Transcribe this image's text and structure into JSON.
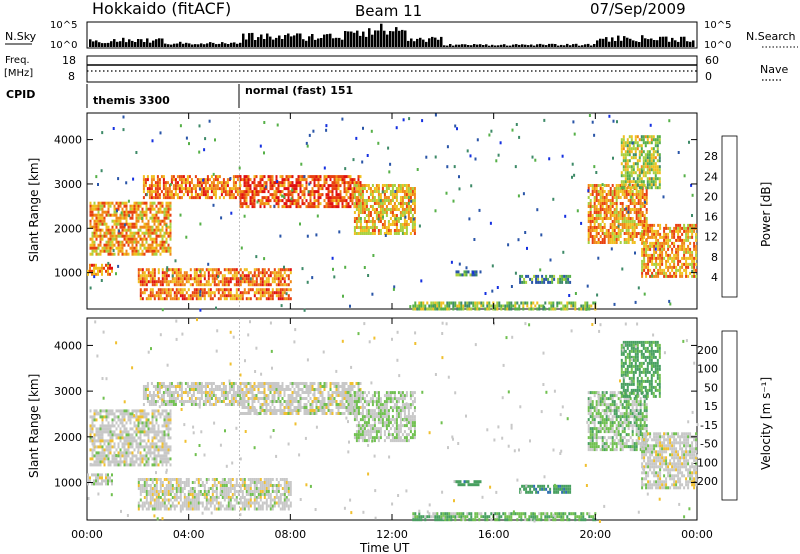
{
  "header": {
    "station": "Hokkaido (fitACF)",
    "beam": "Beam 11",
    "date": "07/Sep/2009"
  },
  "top_panels": {
    "nsky_label": "N.Sky",
    "nsky_ticks": [
      "10^5",
      "10^0"
    ],
    "nsearch_label": "N.Search",
    "nsearch_ticks": [
      "10^5",
      "10^0"
    ],
    "freq_label_1": "Freq.",
    "freq_label_2": "[MHz]",
    "freq_ticks": [
      "18",
      "8"
    ],
    "nave_label": "Nave",
    "nave_ticks": [
      "60",
      "0"
    ],
    "cpid_label": "CPID",
    "cpid_segments": [
      {
        "label": "themis 3300",
        "start_hour": 0,
        "end_hour": 6
      },
      {
        "label": "normal (fast) 151",
        "start_hour": 6,
        "end_hour": 24
      }
    ]
  },
  "chart_data": [
    {
      "type": "heatmap",
      "title": "",
      "xlabel": "Time UT",
      "ylabel": "Slant Range [km]",
      "x_ticks": [
        "00:00",
        "04:00",
        "08:00",
        "12:00",
        "16:00",
        "20:00",
        "00:00"
      ],
      "x_tick_hours": [
        0,
        4,
        8,
        12,
        16,
        20,
        24
      ],
      "xlim": [
        0,
        24
      ],
      "ylim": [
        180,
        4600
      ],
      "y_ticks": [
        1000,
        2000,
        3000,
        4000
      ],
      "colorbar": {
        "label": "Power [dB]",
        "ticks": [
          "4",
          "8",
          "12",
          "16",
          "20",
          "24",
          "28"
        ],
        "tick_values": [
          4,
          8,
          12,
          16,
          20,
          24,
          28
        ],
        "range": [
          0,
          32
        ],
        "colors": [
          "#1530e0",
          "#2a55a8",
          "#3e8a68",
          "#56b048",
          "#a8d040",
          "#f0c020",
          "#f08818",
          "#e84010",
          "#e01010"
        ]
      },
      "regions": [
        {
          "name": "morning-arc",
          "t0": 0.1,
          "t1": 3.3,
          "r0": 1400,
          "r1": 2600,
          "level": 22
        },
        {
          "name": "morning-upper",
          "t0": 2.2,
          "t1": 6.0,
          "r0": 2700,
          "r1": 3200,
          "level": 24
        },
        {
          "name": "dayside-band",
          "t0": 6.0,
          "t1": 10.8,
          "r0": 2500,
          "r1": 3200,
          "level": 26
        },
        {
          "name": "noon-arc",
          "t0": 10.5,
          "t1": 12.9,
          "r0": 1900,
          "r1": 3000,
          "level": 20
        },
        {
          "name": "near-1000",
          "t0": 0.0,
          "t1": 1.0,
          "r0": 950,
          "r1": 1200,
          "level": 24
        },
        {
          "name": "mid-1000",
          "t0": 2.0,
          "t1": 8.0,
          "r0": 700,
          "r1": 1100,
          "level": 24
        },
        {
          "name": "low-band",
          "t0": 2.0,
          "t1": 8.0,
          "r0": 400,
          "r1": 650,
          "level": 24
        },
        {
          "name": "afternoon-low",
          "t0": 12.8,
          "t1": 20.0,
          "r0": 200,
          "r1": 350,
          "level": 14
        },
        {
          "name": "afternoon-900",
          "t0": 14.5,
          "t1": 15.5,
          "r0": 950,
          "r1": 1050,
          "level": 10
        },
        {
          "name": "afternoon-800",
          "t0": 17.0,
          "t1": 19.0,
          "r0": 800,
          "r1": 950,
          "level": 10
        },
        {
          "name": "evening-arc",
          "t0": 19.7,
          "t1": 22.0,
          "r0": 1700,
          "r1": 3000,
          "level": 22
        },
        {
          "name": "evening-low",
          "t0": 21.8,
          "t1": 24.0,
          "r0": 900,
          "r1": 2100,
          "level": 22
        },
        {
          "name": "evening-high",
          "t0": 21.0,
          "t1": 22.5,
          "r0": 2900,
          "r1": 4100,
          "level": 16
        }
      ]
    },
    {
      "type": "heatmap",
      "title": "",
      "xlabel": "Time UT",
      "ylabel": "Slant Range [km]",
      "x_ticks": [
        "00:00",
        "04:00",
        "08:00",
        "12:00",
        "16:00",
        "20:00",
        "00:00"
      ],
      "x_tick_hours": [
        0,
        4,
        8,
        12,
        16,
        20,
        24
      ],
      "xlim": [
        0,
        24
      ],
      "ylim": [
        180,
        4600
      ],
      "y_ticks": [
        1000,
        2000,
        3000,
        4000
      ],
      "colorbar": {
        "label": "Velocity [m s⁻¹]",
        "ticks": [
          "200",
          "100",
          "50",
          "15",
          "-15",
          "-50",
          "-100",
          "-200"
        ],
        "colors": [
          "#1830d0",
          "#3070b0",
          "#48a060",
          "#70c050",
          "#c8c8c8",
          "#f0c030",
          "#f09020",
          "#f05010",
          "#e01010"
        ]
      },
      "regions": [
        {
          "name": "morning-arc",
          "t0": 0.1,
          "t1": 3.3,
          "r0": 1400,
          "r1": 2600,
          "velocity": 0
        },
        {
          "name": "morning-upper",
          "t0": 2.2,
          "t1": 6.0,
          "r0": 2700,
          "r1": 3200,
          "velocity": 0
        },
        {
          "name": "dayside-band",
          "t0": 6.0,
          "t1": 10.8,
          "r0": 2500,
          "r1": 3200,
          "velocity": 0
        },
        {
          "name": "noon-arc",
          "t0": 10.5,
          "t1": 12.9,
          "r0": 1900,
          "r1": 3000,
          "velocity": 10
        },
        {
          "name": "near-1000",
          "t0": 0.0,
          "t1": 1.0,
          "r0": 950,
          "r1": 1200,
          "velocity": 0
        },
        {
          "name": "mid-1000",
          "t0": 2.0,
          "t1": 8.0,
          "r0": 700,
          "r1": 1100,
          "velocity": 0
        },
        {
          "name": "low-band",
          "t0": 2.0,
          "t1": 8.0,
          "r0": 400,
          "r1": 650,
          "velocity": 0
        },
        {
          "name": "afternoon-low",
          "t0": 12.8,
          "t1": 20.0,
          "r0": 200,
          "r1": 350,
          "velocity": 30
        },
        {
          "name": "afternoon-900",
          "t0": 14.5,
          "t1": 15.5,
          "r0": 950,
          "r1": 1050,
          "velocity": 60
        },
        {
          "name": "afternoon-800",
          "t0": 17.0,
          "t1": 19.0,
          "r0": 800,
          "r1": 950,
          "velocity": 60
        },
        {
          "name": "evening-arc",
          "t0": 19.7,
          "t1": 22.0,
          "r0": 1700,
          "r1": 3000,
          "velocity": 20
        },
        {
          "name": "evening-low",
          "t0": 21.8,
          "t1": 24.0,
          "r0": 900,
          "r1": 2100,
          "velocity": 0
        },
        {
          "name": "evening-high",
          "t0": 21.0,
          "t1": 22.5,
          "r0": 2900,
          "r1": 4100,
          "velocity": 40
        }
      ]
    }
  ]
}
